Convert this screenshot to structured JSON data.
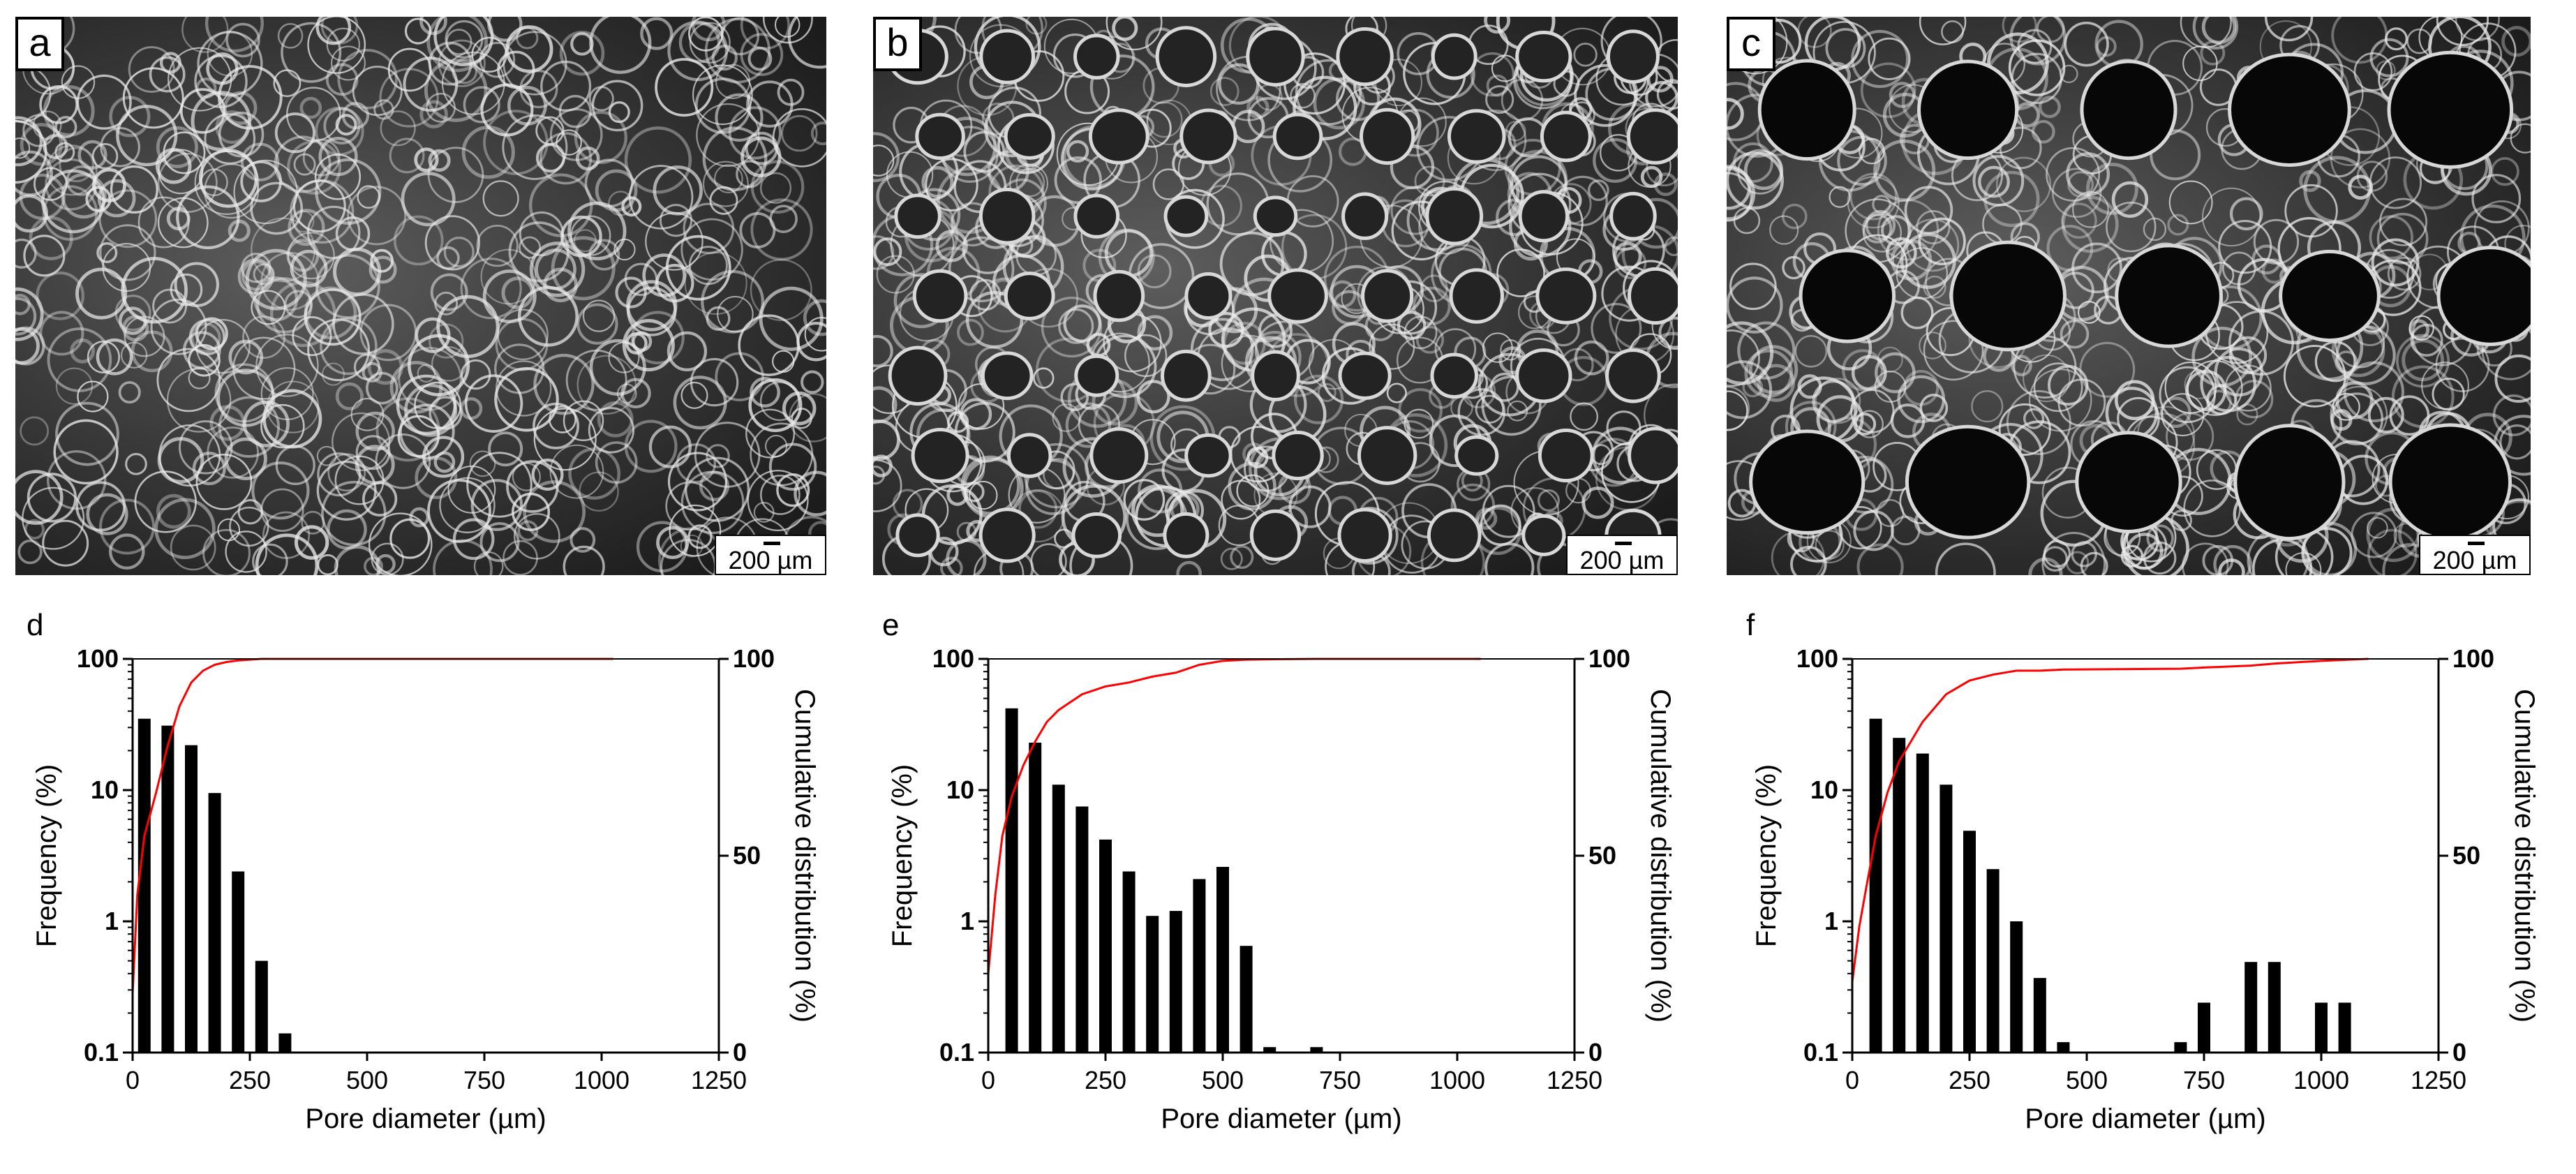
{
  "micrographs": [
    {
      "id": "a",
      "label": "a",
      "scale_text": "200 µm"
    },
    {
      "id": "b",
      "label": "b",
      "scale_text": "200 µm"
    },
    {
      "id": "c",
      "label": "c",
      "scale_text": "200 µm"
    }
  ],
  "colors": {
    "bars": "#000000",
    "cumulative": "#ff0000",
    "axes": "#000000"
  },
  "chart_data": [
    {
      "panel": "d",
      "type": "bar",
      "xlabel": "Pore diameter (µm)",
      "ylabel": "Frequency (%)",
      "y2label": "Cumulative distribution (%)",
      "xlim": [
        0,
        1250
      ],
      "xticks": [
        0,
        250,
        500,
        750,
        1000,
        1250
      ],
      "ylim": [
        0.1,
        100
      ],
      "yscale": "log",
      "yticks": [
        "0.1",
        "1",
        "10",
        "100"
      ],
      "y2lim": [
        0,
        100
      ],
      "y2ticks": [
        "0",
        "50",
        "100"
      ],
      "series": [
        {
          "kind": "bar",
          "x": [
            25,
            75,
            125,
            175,
            225,
            275,
            325
          ],
          "values": [
            35,
            31,
            22,
            9.5,
            2.4,
            0.5,
            0.14
          ]
        },
        {
          "kind": "line",
          "x": [
            0,
            10,
            25,
            50,
            75,
            100,
            125,
            150,
            175,
            200,
            225,
            250,
            275,
            300,
            1025
          ],
          "values": [
            15,
            40,
            55,
            66,
            78,
            88,
            94,
            97,
            98.5,
            99.2,
            99.6,
            99.8,
            100,
            100,
            100
          ]
        }
      ]
    },
    {
      "panel": "e",
      "type": "bar",
      "xlabel": "Pore diameter (µm)",
      "ylabel": "Frequency (%)",
      "y2label": "Cumulative distribution (%)",
      "xlim": [
        0,
        1250
      ],
      "xticks": [
        0,
        250,
        500,
        750,
        1000,
        1250
      ],
      "ylim": [
        0.1,
        100
      ],
      "yscale": "log",
      "yticks": [
        "0.1",
        "1",
        "10",
        "100"
      ],
      "y2lim": [
        0,
        100
      ],
      "y2ticks": [
        "0",
        "50",
        "100"
      ],
      "series": [
        {
          "kind": "bar",
          "x": [
            50,
            100,
            150,
            200,
            250,
            300,
            350,
            400,
            450,
            500,
            550,
            600,
            700
          ],
          "values": [
            42,
            23,
            11,
            7.5,
            4.2,
            2.4,
            1.1,
            1.2,
            2.1,
            2.6,
            0.65,
            0.11,
            0.11
          ]
        },
        {
          "kind": "line",
          "x": [
            0,
            15,
            30,
            50,
            75,
            100,
            125,
            150,
            200,
            250,
            300,
            350,
            400,
            450,
            500,
            550,
            600,
            700,
            1050
          ],
          "values": [
            20,
            40,
            55,
            65,
            73,
            79,
            84,
            87,
            91,
            93,
            94,
            95.5,
            96.5,
            98.5,
            99.5,
            99.8,
            99.9,
            100,
            100
          ]
        }
      ]
    },
    {
      "panel": "f",
      "type": "bar",
      "xlabel": "Pore diameter (µm)",
      "ylabel": "Frequency (%)",
      "y2label": "Cumulative distribution (%)",
      "xlim": [
        0,
        1250
      ],
      "xticks": [
        0,
        250,
        500,
        750,
        1000,
        1250
      ],
      "ylim": [
        0.1,
        100
      ],
      "yscale": "log",
      "yticks": [
        "0.1",
        "1",
        "10",
        "100"
      ],
      "y2lim": [
        0,
        100
      ],
      "y2ticks": [
        "0",
        "50",
        "100"
      ],
      "series": [
        {
          "kind": "bar",
          "x": [
            50,
            100,
            150,
            200,
            250,
            300,
            350,
            400,
            450,
            700,
            750,
            850,
            900,
            1000,
            1050
          ],
          "values": [
            35,
            25,
            19,
            11,
            4.9,
            2.5,
            1.0,
            0.37,
            0.12,
            0.12,
            0.24,
            0.49,
            0.49,
            0.24,
            0.24
          ]
        },
        {
          "kind": "line",
          "x": [
            0,
            15,
            30,
            50,
            75,
            100,
            150,
            200,
            250,
            300,
            350,
            400,
            450,
            700,
            750,
            850,
            900,
            1000,
            1100
          ],
          "values": [
            18,
            32,
            42,
            55,
            66,
            74,
            84,
            91,
            94.5,
            96,
            97,
            97,
            97.3,
            97.5,
            97.8,
            98.3,
            98.8,
            99.5,
            100
          ]
        }
      ]
    }
  ]
}
